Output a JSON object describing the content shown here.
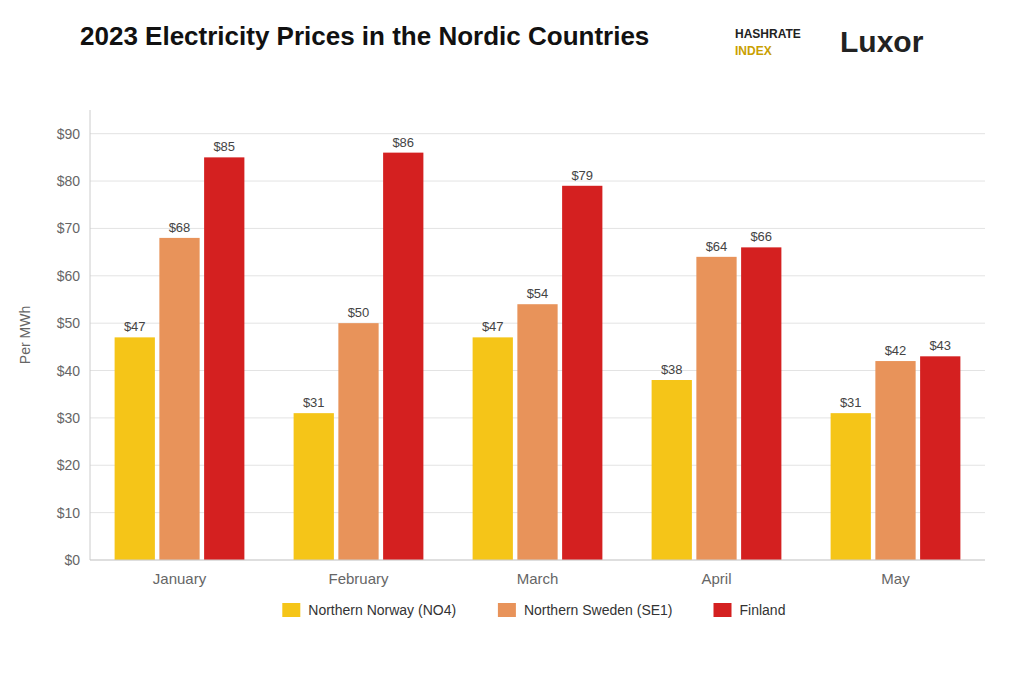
{
  "chart_data": {
    "type": "bar",
    "title": "2023 Electricity Prices in the Nordic Countries",
    "y_label": "Per MWh",
    "annotations": [
      "HASHRATE",
      "INDEX",
      "Luxor"
    ],
    "categories": [
      "January",
      "February",
      "March",
      "April",
      "May"
    ],
    "series": [
      {
        "name": "Northern Norway (NO4)",
        "color": "#F5C518",
        "values": [
          47,
          31,
          47,
          38,
          31
        ],
        "value_labels": [
          "$47",
          "$31",
          "$47",
          "$38",
          "$31"
        ]
      },
      {
        "name": "Northern Sweden (SE1)",
        "color": "#E8935A",
        "values": [
          68,
          50,
          54,
          64,
          42
        ],
        "value_labels": [
          "$68",
          "$50",
          "$54",
          "$64",
          "$42"
        ]
      },
      {
        "name": "Finland",
        "color": "#D42020",
        "values": [
          85,
          86,
          79,
          66,
          43
        ],
        "value_labels": [
          "$85",
          "$86",
          "$79",
          "$66",
          "$43"
        ]
      }
    ],
    "ylim": [
      0,
      95
    ],
    "yticks": [
      {
        "value": 0,
        "label": "$0"
      },
      {
        "value": 10,
        "label": "$10"
      },
      {
        "value": 20,
        "label": "$20"
      },
      {
        "value": 30,
        "label": "$30"
      },
      {
        "value": 40,
        "label": "$40"
      },
      {
        "value": 50,
        "label": "$50"
      },
      {
        "value": 60,
        "label": "$60"
      },
      {
        "value": 70,
        "label": "$70"
      },
      {
        "value": 80,
        "label": "$80"
      },
      {
        "value": 90,
        "label": "$90"
      }
    ],
    "grid": true,
    "legend": "bottom",
    "data_labels": true
  }
}
